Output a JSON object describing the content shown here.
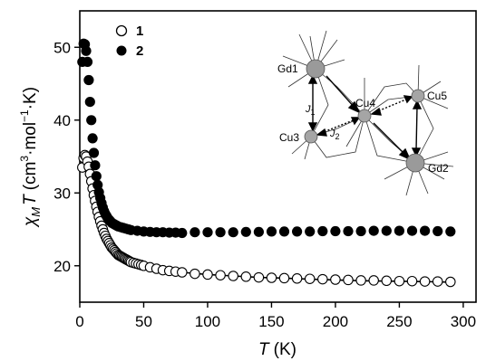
{
  "chart_data": {
    "type": "scatter",
    "title": "",
    "xlabel": {
      "symbol": "T",
      "unit": "(K)"
    },
    "ylabel": {
      "symbol": "χ",
      "sub": "M",
      "symbol2": "T",
      "unit_open": "(cm",
      "sup": "3",
      "unit_mid": "·mol",
      "sup2": "−1",
      "unit_end": "·K)"
    },
    "xlim": [
      0,
      310
    ],
    "ylim": [
      15,
      55
    ],
    "xticks": [
      "0",
      "50",
      "100",
      "150",
      "200",
      "250",
      "300"
    ],
    "xtick_values": [
      0,
      50,
      100,
      150,
      200,
      250,
      300
    ],
    "yticks": [
      "20",
      "30",
      "40",
      "50"
    ],
    "ytick_values": [
      20,
      30,
      40,
      50
    ],
    "grid": false,
    "legend_position": "top-left",
    "series": [
      {
        "name": "1",
        "marker": "open-circle",
        "x": [
          2,
          3,
          4,
          5,
          6,
          7,
          8,
          9,
          10,
          11,
          12,
          13,
          14,
          15,
          16,
          17,
          18,
          19,
          20,
          21,
          22,
          23,
          24,
          25,
          26,
          27,
          28,
          29,
          30,
          31,
          32,
          33,
          34,
          35,
          36,
          37,
          38,
          39,
          40,
          42,
          44,
          46,
          48,
          50,
          55,
          60,
          65,
          70,
          75,
          80,
          90,
          100,
          110,
          120,
          130,
          140,
          150,
          160,
          170,
          180,
          190,
          200,
          210,
          220,
          230,
          240,
          250,
          260,
          270,
          280,
          290
        ],
        "y": [
          33.5,
          34.8,
          35.2,
          35.0,
          34.3,
          33.6,
          32.6,
          31.6,
          30.6,
          29.7,
          28.9,
          28.1,
          27.4,
          26.7,
          26.1,
          25.5,
          25.0,
          24.5,
          24.1,
          23.7,
          23.4,
          23.1,
          22.8,
          22.5,
          22.3,
          22.1,
          21.9,
          21.7,
          21.5,
          21.4,
          21.3,
          21.2,
          21.1,
          21.0,
          20.9,
          20.8,
          20.7,
          20.6,
          20.5,
          20.4,
          20.3,
          20.2,
          20.1,
          20.0,
          19.8,
          19.6,
          19.4,
          19.3,
          19.2,
          19.1,
          18.9,
          18.8,
          18.7,
          18.6,
          18.5,
          18.4,
          18.35,
          18.3,
          18.25,
          18.2,
          18.15,
          18.1,
          18.05,
          18.0,
          18.0,
          17.95,
          17.9,
          17.9,
          17.85,
          17.85,
          17.8
        ]
      },
      {
        "name": "2",
        "marker": "filled-circle",
        "x": [
          2,
          3,
          4,
          5,
          6,
          7,
          8,
          9,
          10,
          11,
          12,
          13,
          14,
          15,
          16,
          17,
          18,
          19,
          20,
          21,
          22,
          23,
          24,
          25,
          26,
          27,
          28,
          29,
          30,
          32,
          34,
          36,
          38,
          40,
          45,
          50,
          55,
          60,
          65,
          70,
          75,
          80,
          90,
          100,
          110,
          120,
          130,
          140,
          150,
          160,
          170,
          180,
          190,
          200,
          210,
          220,
          230,
          240,
          250,
          260,
          270,
          280,
          290
        ],
        "y": [
          48.0,
          50.5,
          50.4,
          49.5,
          48.0,
          45.5,
          42.5,
          40.0,
          37.5,
          35.5,
          33.8,
          32.3,
          31.1,
          30.1,
          29.3,
          28.6,
          28.0,
          27.5,
          27.1,
          26.8,
          26.5,
          26.3,
          26.1,
          25.9,
          25.8,
          25.7,
          25.6,
          25.5,
          25.4,
          25.3,
          25.2,
          25.1,
          25.0,
          24.9,
          24.8,
          24.7,
          24.65,
          24.6,
          24.6,
          24.55,
          24.55,
          24.5,
          24.6,
          24.6,
          24.6,
          24.6,
          24.65,
          24.65,
          24.7,
          24.7,
          24.7,
          24.7,
          24.75,
          24.75,
          24.75,
          24.75,
          24.8,
          24.8,
          24.8,
          24.8,
          24.8,
          24.75,
          24.7
        ]
      }
    ],
    "fit": {
      "x": [
        2,
        3,
        4,
        5,
        6,
        7,
        8,
        9,
        10,
        12,
        14,
        16,
        18,
        20,
        25,
        30,
        35,
        40,
        50,
        60,
        70,
        80,
        100,
        120,
        140,
        160,
        180,
        200,
        220,
        240,
        260,
        280,
        290
      ],
      "y": [
        33.0,
        34.4,
        34.9,
        34.7,
        34.0,
        33.2,
        32.2,
        31.2,
        30.2,
        28.5,
        27.1,
        25.9,
        24.9,
        24.0,
        22.5,
        21.4,
        20.9,
        20.5,
        20.0,
        19.6,
        19.3,
        19.1,
        18.8,
        18.6,
        18.4,
        18.3,
        18.15,
        18.05,
        17.95,
        17.9,
        17.85,
        17.8,
        17.75
      ]
    }
  },
  "inset": {
    "atoms": [
      "Gd1",
      "Cu4",
      "Cu5",
      "Cu3",
      "Gd2"
    ],
    "couplings": [
      {
        "symbol": "J",
        "sub": "1"
      },
      {
        "symbol": "J",
        "sub": "2"
      }
    ]
  }
}
